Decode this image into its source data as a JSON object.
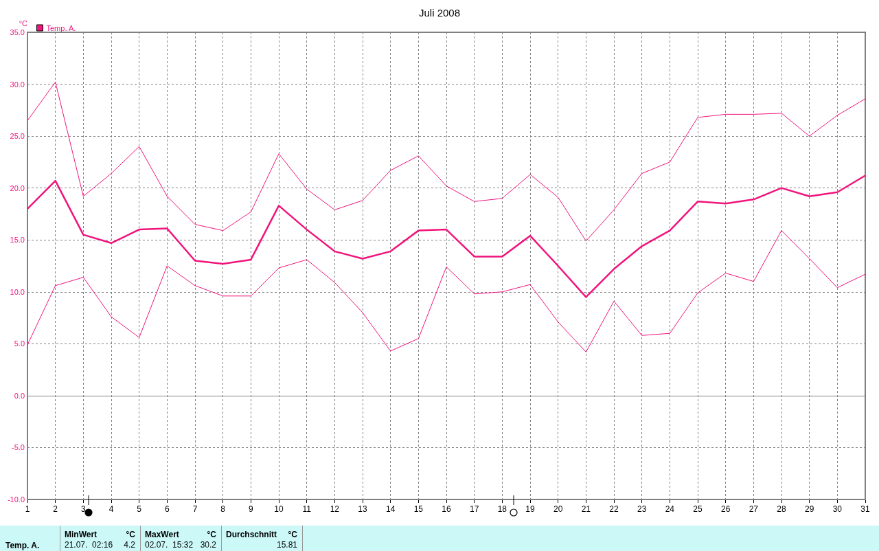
{
  "chart_data": {
    "type": "line",
    "title": "Juli 2008",
    "ylabel": "°C",
    "x": [
      1,
      2,
      3,
      4,
      5,
      6,
      7,
      8,
      9,
      10,
      11,
      12,
      13,
      14,
      15,
      16,
      17,
      18,
      19,
      20,
      21,
      22,
      23,
      24,
      25,
      26,
      27,
      28,
      29,
      30,
      31
    ],
    "xlim": [
      1,
      31
    ],
    "xticks": [
      1,
      2,
      3,
      4,
      5,
      6,
      7,
      8,
      9,
      10,
      11,
      12,
      13,
      14,
      15,
      16,
      17,
      18,
      19,
      20,
      21,
      22,
      23,
      24,
      25,
      26,
      27,
      28,
      29,
      30,
      31
    ],
    "ylim": [
      -10,
      35
    ],
    "yticks": [
      {
        "value": -10,
        "label": "-10.0"
      },
      {
        "value": -5,
        "label": "-5.0"
      },
      {
        "value": 0,
        "label": "0.0"
      },
      {
        "value": 5,
        "label": "5.0"
      },
      {
        "value": 10,
        "label": "10.0"
      },
      {
        "value": 15,
        "label": "15.0"
      },
      {
        "value": 20,
        "label": "20.0"
      },
      {
        "value": 25,
        "label": "25.0"
      },
      {
        "value": 30,
        "label": "30.0"
      },
      {
        "value": 35,
        "label": "35.0"
      }
    ],
    "series": [
      {
        "color": "#f0147c",
        "values": [
          26.5,
          30.2,
          19.2,
          21.4,
          24.0,
          19.2,
          16.5,
          15.9,
          17.7,
          23.3,
          19.9,
          17.9,
          18.8,
          21.7,
          23.1,
          20.2,
          18.7,
          19.0,
          21.3,
          19.1,
          14.9,
          17.9,
          21.4,
          22.5,
          26.8,
          27.1,
          27.1,
          27.2,
          25.0,
          27.0,
          28.6
        ]
      },
      {
        "name": "Temp. A.",
        "color": "#f0147c",
        "values": [
          18.0,
          20.7,
          15.5,
          14.7,
          16.0,
          16.1,
          13.0,
          12.7,
          13.1,
          18.3,
          16.0,
          13.9,
          13.2,
          13.9,
          15.9,
          16.0,
          13.4,
          13.4,
          15.4,
          12.5,
          9.5,
          12.2,
          14.4,
          15.9,
          18.7,
          18.5,
          18.9,
          20.0,
          19.2,
          19.6,
          21.2
        ]
      },
      {
        "color": "#f0147c",
        "values": [
          4.9,
          10.6,
          11.4,
          7.6,
          5.6,
          12.5,
          10.6,
          9.6,
          9.6,
          12.3,
          13.1,
          10.9,
          8.0,
          4.3,
          5.5,
          12.4,
          9.8,
          10.0,
          10.7,
          7.1,
          4.2,
          9.1,
          5.8,
          6.0,
          9.9,
          11.8,
          11.0,
          15.9,
          13.2,
          10.4,
          11.7
        ]
      }
    ],
    "ref_lines": [
      {
        "axis": "y",
        "value": 0,
        "color": "#808080"
      }
    ],
    "grid": true,
    "legend": "top left",
    "marker": "none",
    "annotations": [
      "Temp. A.",
      "MinWert",
      "°C",
      "21.07.  02:16",
      "4.2",
      "MaxWert",
      "°C",
      "02.07.  15:32",
      "30.2",
      "Durchschnitt",
      "°C",
      "15.81"
    ]
  }
}
